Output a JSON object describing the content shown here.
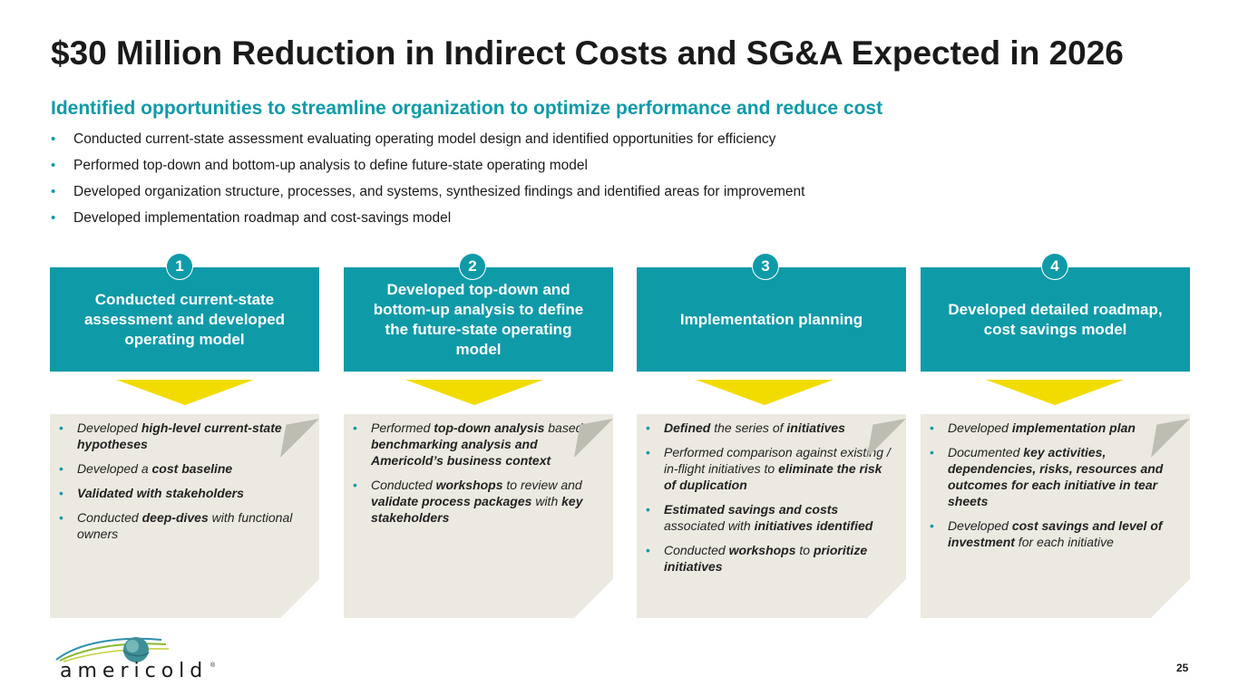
{
  "title": "$30 Million Reduction in Indirect Costs and SG&A Expected in 2026",
  "subtitle": "Identified opportunities to streamline organization to optimize performance and reduce cost",
  "bullets": [
    "Conducted current-state assessment evaluating operating model design and identified opportunities for efficiency",
    "Performed top-down and bottom-up analysis to define future-state operating model",
    "Developed organization structure, processes, and systems, synthesized findings and identified areas for improvement",
    "Developed implementation roadmap and cost-savings model"
  ],
  "steps": [
    {
      "number": "1",
      "heading": "Conducted current-state assessment and developed operating model",
      "items": [
        [
          {
            "t": "Developed "
          },
          {
            "t": "high-level current-state hypotheses",
            "b": true
          }
        ],
        [
          {
            "t": "Developed a "
          },
          {
            "t": "cost baseline",
            "b": true
          }
        ],
        [
          {
            "t": "Validated with stakeholders",
            "b": true
          }
        ],
        [
          {
            "t": "Conducted "
          },
          {
            "t": "deep-dives",
            "b": true
          },
          {
            "t": " with functional owners"
          }
        ]
      ]
    },
    {
      "number": "2",
      "heading": "Developed top-down and bottom-up analysis to define the future-state operating model",
      "items": [
        [
          {
            "t": "Performed "
          },
          {
            "t": "top-down analysis",
            "b": true
          },
          {
            "t": " based on "
          },
          {
            "t": "benchmarking analysis and Americold’s business context",
            "b": true
          }
        ],
        [
          {
            "t": "Conducted "
          },
          {
            "t": "workshops",
            "b": true
          },
          {
            "t": " to review and "
          },
          {
            "t": "validate process packages",
            "b": true
          },
          {
            "t": " with "
          },
          {
            "t": "key stakeholders",
            "b": true
          }
        ]
      ]
    },
    {
      "number": "3",
      "heading": "Implementation planning",
      "items": [
        [
          {
            "t": "Defined",
            "b": true
          },
          {
            "t": " the series of "
          },
          {
            "t": "initiatives",
            "b": true
          }
        ],
        [
          {
            "t": "Performed comparison against existing / in-flight initiatives to "
          },
          {
            "t": "eliminate the risk of duplication",
            "b": true
          }
        ],
        [
          {
            "t": "Estimated savings and costs",
            "b": true
          },
          {
            "t": " associated with "
          },
          {
            "t": "initiatives identified",
            "b": true
          }
        ],
        [
          {
            "t": "Conducted "
          },
          {
            "t": "workshops",
            "b": true
          },
          {
            "t": " to "
          },
          {
            "t": "prioritize initiatives",
            "b": true
          }
        ]
      ]
    },
    {
      "number": "4",
      "heading": "Developed detailed roadmap, cost savings model",
      "items": [
        [
          {
            "t": "Developed "
          },
          {
            "t": "implementation plan",
            "b": true
          }
        ],
        [
          {
            "t": "Documented "
          },
          {
            "t": "key activities, dependencies, risks, resources and outcomes for each initiative in tear sheets",
            "b": true
          }
        ],
        [
          {
            "t": "Developed "
          },
          {
            "t": "cost savings and level of investment",
            "b": true
          },
          {
            "t": " for each initiative"
          }
        ]
      ]
    }
  ],
  "logo": {
    "word": "americold",
    "registered": "®"
  },
  "page_number": "25",
  "colors": {
    "teal": "#0f9aa8",
    "yellow": "#f2dc00",
    "card": "#eceae0"
  }
}
